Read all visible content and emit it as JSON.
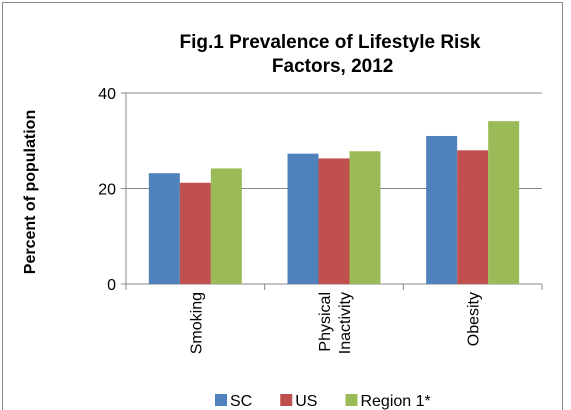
{
  "chart_data": {
    "type": "bar",
    "title": "Fig.1  Prevalence of Lifestyle Risk Factors, 2012",
    "y_label": "Percent  of population",
    "categories": [
      "Smoking",
      "Physical Inactivity",
      "Obesity"
    ],
    "series": [
      {
        "name": "SC",
        "color": "#4f81bd",
        "values": [
          23.2,
          27.3,
          31.0
        ]
      },
      {
        "name": "US",
        "color": "#c0504d",
        "values": [
          21.2,
          26.3,
          28.0
        ]
      },
      {
        "name": "Region 1*",
        "color": "#9bbb59",
        "values": [
          24.2,
          27.8,
          34.1
        ]
      }
    ],
    "ylim": [
      0,
      40
    ],
    "yticks": [
      0,
      20,
      40
    ],
    "grid": true
  }
}
